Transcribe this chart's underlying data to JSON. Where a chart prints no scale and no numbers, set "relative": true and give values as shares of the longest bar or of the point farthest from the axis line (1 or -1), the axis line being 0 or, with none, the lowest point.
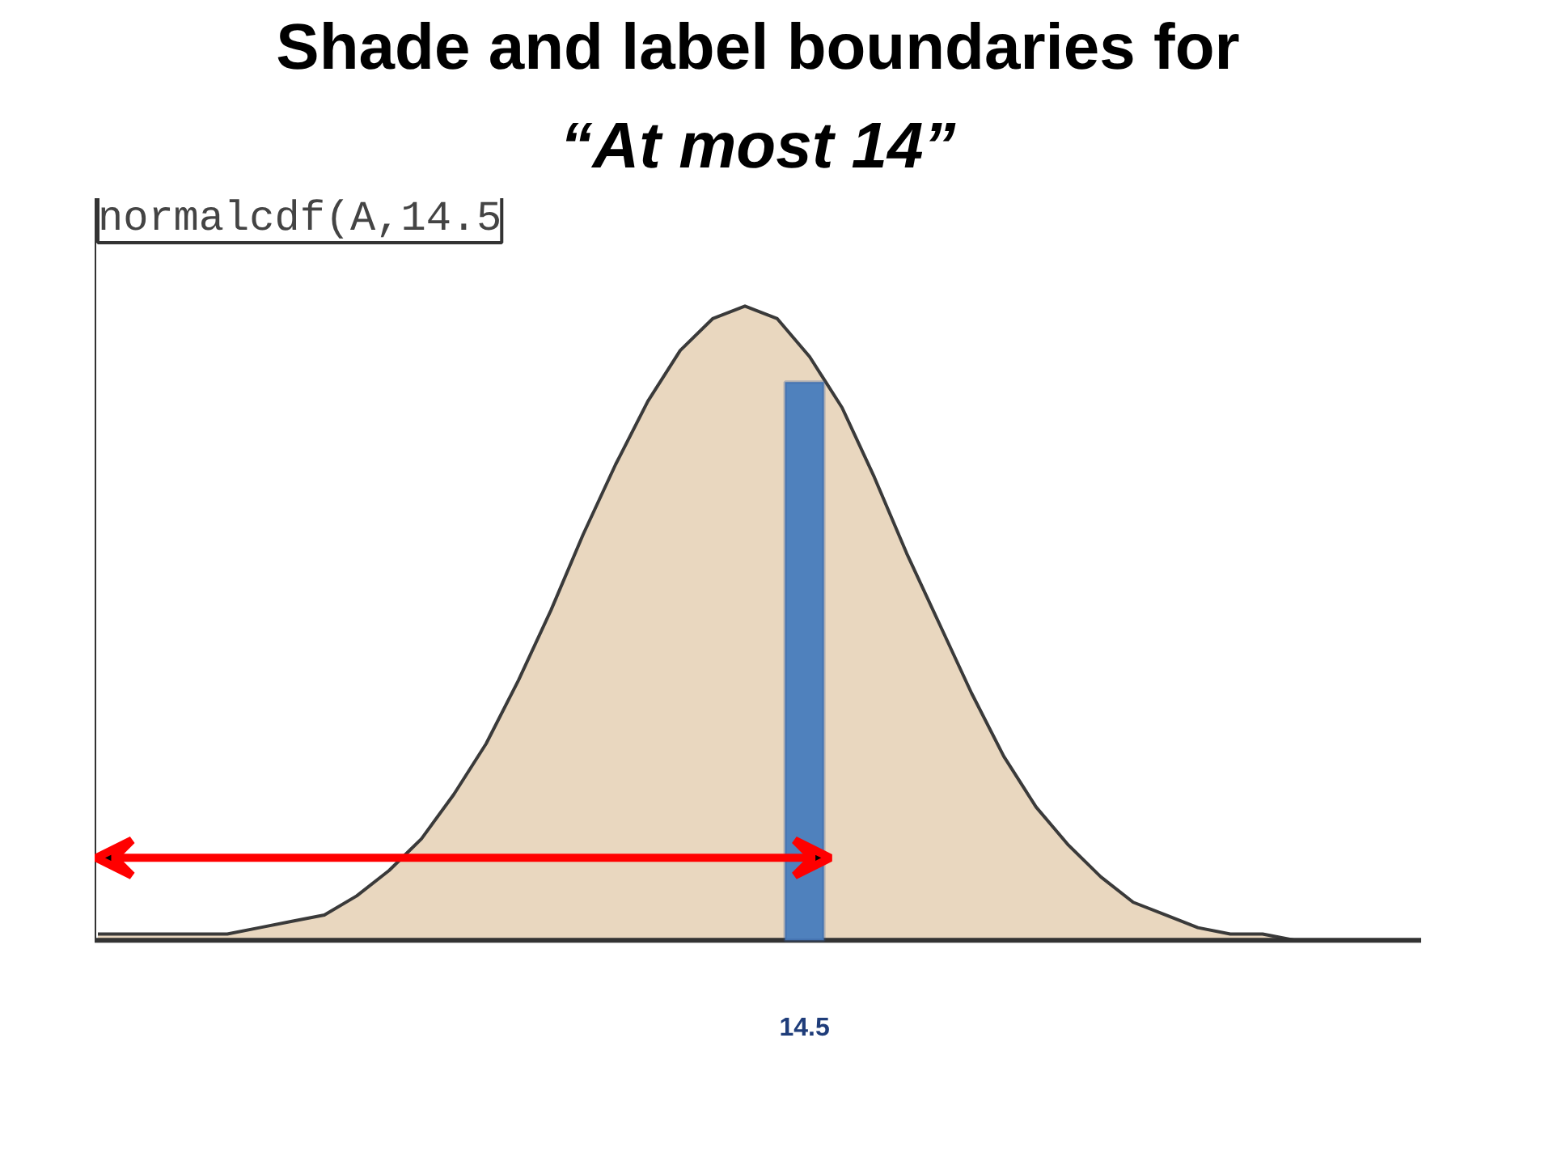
{
  "chart_data": {
    "type": "area",
    "relative": true,
    "title": "Shade and label boundaries for",
    "subtitle": "“At most 14”",
    "categories": [
      null,
      null,
      null,
      null,
      null,
      null,
      null,
      null,
      null,
      null,
      null,
      null,
      null,
      null,
      null,
      null,
      null,
      null,
      null,
      null,
      null,
      null,
      null,
      null,
      null,
      null,
      null,
      null,
      null,
      null,
      null,
      null,
      null,
      null,
      null,
      null,
      null,
      null,
      null,
      null,
      null
    ],
    "series": [
      {
        "color": "#e9d7bf",
        "values": [
          0.01,
          0.01,
          0.01,
          0.01,
          0.01,
          0.02,
          0.03,
          0.04,
          0.07,
          0.11,
          0.16,
          0.23,
          0.31,
          0.41,
          0.52,
          0.64,
          0.75,
          0.85,
          0.93,
          0.98,
          1.0,
          0.98,
          0.92,
          0.84,
          0.73,
          0.61,
          0.5,
          0.39,
          0.29,
          0.21,
          0.15,
          0.1,
          0.06,
          0.04,
          0.02,
          0.01,
          0.01,
          0.0,
          0.0,
          0.0,
          0.0
        ]
      }
    ],
    "annotations": [
      "normalcdf(A,14.5",
      "14.5"
    ],
    "grid": false
  }
}
